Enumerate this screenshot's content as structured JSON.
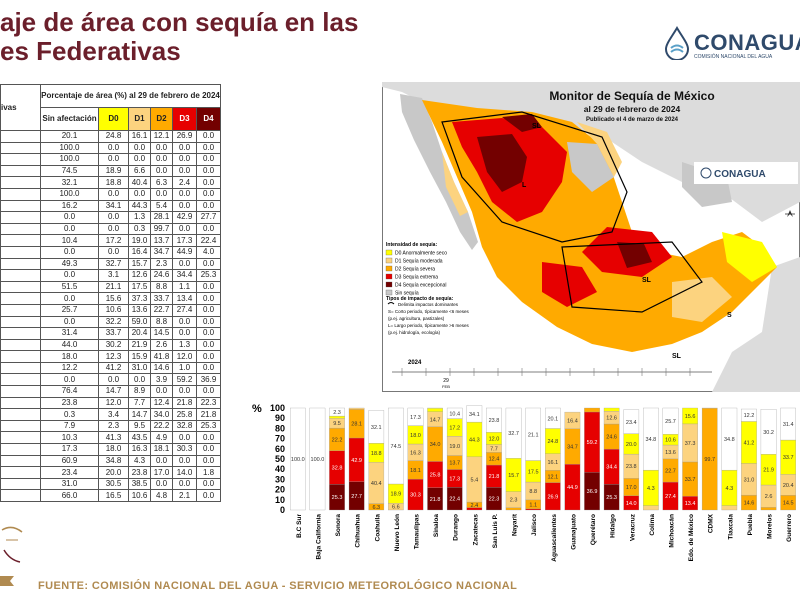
{
  "title": {
    "line1": "aje de área con sequía en las",
    "line2": "es Federativas"
  },
  "logo": {
    "name": "CONAGUA",
    "subtitle": "COMISIÓN NACIONAL DEL AGUA"
  },
  "table": {
    "header_group": "Porcentaje de área (%) al 29 de febrero de 2024",
    "first_col_header": "ivas",
    "columns": [
      "Sin afectación",
      "D0",
      "D1",
      "D2",
      "D3",
      "D4"
    ],
    "rows": [
      [
        "20.1",
        "24.8",
        "16.1",
        "12.1",
        "26.9",
        "0.0"
      ],
      [
        "100.0",
        "0.0",
        "0.0",
        "0.0",
        "0.0",
        "0.0"
      ],
      [
        "100.0",
        "0.0",
        "0.0",
        "0.0",
        "0.0",
        "0.0"
      ],
      [
        "74.5",
        "18.9",
        "6.6",
        "0.0",
        "0.0",
        "0.0"
      ],
      [
        "32.1",
        "18.8",
        "40.4",
        "6.3",
        "2.4",
        "0.0"
      ],
      [
        "100.0",
        "0.0",
        "0.0",
        "0.0",
        "0.0",
        "0.0"
      ],
      [
        "16.2",
        "34.1",
        "44.3",
        "5.4",
        "0.0",
        "0.0"
      ],
      [
        "0.0",
        "0.0",
        "1.3",
        "28.1",
        "42.9",
        "27.7"
      ],
      [
        "0.0",
        "0.0",
        "0.3",
        "99.7",
        "0.0",
        "0.0"
      ],
      [
        "10.4",
        "17.2",
        "19.0",
        "13.7",
        "17.3",
        "22.4"
      ],
      [
        "0.0",
        "0.0",
        "16.4",
        "34.7",
        "44.9",
        "4.0"
      ],
      [
        "49.3",
        "32.7",
        "15.7",
        "2.3",
        "0.0",
        "0.0"
      ],
      [
        "0.0",
        "3.1",
        "12.6",
        "24.6",
        "34.4",
        "25.3"
      ],
      [
        "51.5",
        "21.1",
        "17.5",
        "8.8",
        "1.1",
        "0.0"
      ],
      [
        "0.0",
        "15.6",
        "37.3",
        "33.7",
        "13.4",
        "0.0"
      ],
      [
        "25.7",
        "10.6",
        "13.6",
        "22.7",
        "27.4",
        "0.0"
      ],
      [
        "0.0",
        "32.2",
        "59.0",
        "8.8",
        "0.0",
        "0.0"
      ],
      [
        "31.4",
        "33.7",
        "20.4",
        "14.5",
        "0.0",
        "0.0"
      ],
      [
        "44.0",
        "30.2",
        "21.9",
        "2.6",
        "1.3",
        "0.0"
      ],
      [
        "18.0",
        "12.3",
        "15.9",
        "41.8",
        "12.0",
        "0.0"
      ],
      [
        "12.2",
        "41.2",
        "31.0",
        "14.6",
        "1.0",
        "0.0"
      ],
      [
        "0.0",
        "0.0",
        "0.0",
        "3.9",
        "59.2",
        "36.9"
      ],
      [
        "76.4",
        "14.7",
        "8.9",
        "0.0",
        "0.0",
        "0.0"
      ],
      [
        "23.8",
        "12.0",
        "7.7",
        "12.4",
        "21.8",
        "22.3"
      ],
      [
        "0.3",
        "3.4",
        "14.7",
        "34.0",
        "25.8",
        "21.8"
      ],
      [
        "7.9",
        "2.3",
        "9.5",
        "22.2",
        "32.8",
        "25.3"
      ],
      [
        "10.3",
        "41.3",
        "43.5",
        "4.9",
        "0.0",
        "0.0"
      ],
      [
        "17.3",
        "18.0",
        "16.3",
        "18.1",
        "30.3",
        "0.0"
      ],
      [
        "60.9",
        "34.8",
        "4.3",
        "0.0",
        "0.0",
        "0.0"
      ],
      [
        "23.4",
        "20.0",
        "23.8",
        "17.0",
        "14.0",
        "1.8"
      ],
      [
        "31.0",
        "30.5",
        "38.5",
        "0.0",
        "0.0",
        "0.0"
      ],
      [
        "66.0",
        "16.5",
        "10.6",
        "4.8",
        "2.1",
        "0.0"
      ]
    ]
  },
  "map": {
    "title": "Monitor de Sequía de México",
    "date": "al 29 de febrero de 2024",
    "published": "Publicado el 4 de marzo de 2024",
    "logo_name": "CONAGUA",
    "legend_title": "Intensidad de sequía:",
    "legend": [
      {
        "label": "D0 Anormalmente seco",
        "color": "#ffff00"
      },
      {
        "label": "D1 Sequía moderada",
        "color": "#fcd37f"
      },
      {
        "label": "D2 Sequía severa",
        "color": "#ffaa00"
      },
      {
        "label": "D3 Sequía extrema",
        "color": "#e60000"
      },
      {
        "label": "D4 Sequía excepcional",
        "color": "#730000"
      },
      {
        "label": "Sin sequía",
        "color": "#c8c8c8"
      }
    ],
    "impact_title": "Tipos de impacto de sequía:",
    "impact_items": [
      "Delimita impactos dominantes",
      "S= Corto periodo, típicamente <6 meses",
      "(p.ej. agricultura, pastizales)",
      "L= Largo periodo, típicamente >6 meses",
      "(p.ej. hidrología, ecología)"
    ],
    "timeline_year": "2024",
    "timeline_marker": "29",
    "timeline_month": "FEB",
    "region_labels": [
      "SL",
      "L",
      "SL",
      "SL",
      "S"
    ]
  },
  "chart_data": {
    "type": "bar",
    "stacked": true,
    "ylabel": "%",
    "ylim": [
      0,
      100
    ],
    "yticks": [
      "0",
      "10",
      "20",
      "30",
      "40",
      "50",
      "60",
      "70",
      "80",
      "90",
      "100"
    ],
    "categories": [
      "B.C Sur",
      "Baja California",
      "Sonora",
      "Chihuahua",
      "Coahuila",
      "Nuevo León",
      "Tamaulipas",
      "Sinaloa",
      "Durango",
      "Zacatecas",
      "San Luis P.",
      "Nayarit",
      "Jalisco",
      "Aguascalientes",
      "Guanajuato",
      "Querétaro",
      "Hidalgo",
      "Veracruz",
      "Colima",
      "Michoacán",
      "Edo. de México",
      "CDMX",
      "Tlaxcala",
      "Puebla",
      "Morelos",
      "Guerrero"
    ],
    "series": [
      {
        "name": "D4",
        "color": "#730000",
        "values": [
          0,
          0,
          25.3,
          27.7,
          0,
          0,
          0,
          21.8,
          22.4,
          0,
          22.3,
          0,
          0,
          0,
          0,
          36.9,
          25.3,
          0,
          0,
          0,
          0,
          0,
          0,
          0,
          0,
          0
        ]
      },
      {
        "name": "D3",
        "color": "#e60000",
        "values": [
          0,
          0,
          32.8,
          42.9,
          0,
          0,
          30.3,
          25.8,
          17.3,
          2.4,
          21.8,
          0,
          1.1,
          26.9,
          44.9,
          59.2,
          34.4,
          14.0,
          0,
          27.4,
          13.4,
          0,
          0,
          0,
          0,
          0
        ]
      },
      {
        "name": "D2",
        "color": "#ffaa00",
        "values": [
          0,
          0,
          22.2,
          28.1,
          6.3,
          0,
          18.1,
          34.0,
          13.7,
          5.4,
          12.4,
          2.3,
          8.8,
          12.1,
          34.7,
          3.9,
          24.6,
          17.0,
          0,
          22.7,
          33.7,
          99.7,
          0,
          14.6,
          2.6,
          14.5
        ]
      },
      {
        "name": "D1",
        "color": "#fcd37f",
        "values": [
          0,
          0,
          9.5,
          1.3,
          40.4,
          6.6,
          16.3,
          14.7,
          19.0,
          44.3,
          7.7,
          15.7,
          17.5,
          16.1,
          16.4,
          0,
          12.6,
          23.8,
          4.3,
          13.6,
          37.3,
          0.3,
          4.3,
          31.0,
          21.9,
          20.4
        ]
      },
      {
        "name": "D0",
        "color": "#ffff00",
        "values": [
          0,
          0,
          2.3,
          0,
          18.8,
          18.9,
          18.0,
          3.4,
          17.2,
          34.1,
          12.0,
          32.7,
          21.1,
          24.8,
          0,
          0,
          3.1,
          20.0,
          34.8,
          10.6,
          15.6,
          0,
          34.8,
          41.2,
          30.2,
          33.7
        ]
      },
      {
        "name": "Sin afectación",
        "color": "#ffffff",
        "values": [
          100,
          100,
          7.9,
          0,
          32.1,
          74.5,
          17.3,
          0.3,
          10.4,
          16.2,
          23.8,
          49.3,
          51.5,
          20.1,
          0,
          0,
          0,
          23.4,
          60.9,
          25.7,
          0,
          0,
          60.9,
          12.2,
          44.0,
          31.4
        ]
      }
    ],
    "bar_labels": [
      [
        "100.0"
      ],
      [
        "100.0"
      ],
      [
        "25.3",
        "32.8",
        "22.2",
        "9.5",
        "2.3",
        "7.9"
      ],
      [
        "27.7",
        "42.9",
        "28.1",
        "1.3"
      ],
      [
        "6.3",
        "40.4",
        "18.8",
        "32.1"
      ],
      [
        "6.6",
        "18.9",
        "74.5"
      ],
      [
        "30.3",
        "18.1",
        "16.3",
        "18.0",
        "17.3"
      ],
      [
        "21.8",
        "25.8",
        "34.0",
        "14.7",
        "3.4"
      ],
      [
        "22.4",
        "17.3",
        "13.7",
        "19.0",
        "17.2",
        "10.4"
      ],
      [
        "2.4",
        "5.4",
        "44.3",
        "34.1",
        "16.2"
      ],
      [
        "22.3",
        "21.8",
        "12.4",
        "7.7",
        "12.0",
        "23.8"
      ],
      [
        "2.3",
        "15.7",
        "32.7",
        "49.3"
      ],
      [
        "1.1",
        "8.8",
        "17.5",
        "21.1",
        "51.5"
      ],
      [
        "26.9",
        "12.1",
        "16.1",
        "24.8",
        "20.1"
      ],
      [
        "44.9",
        "34.7",
        "16.4"
      ],
      [
        "36.9",
        "59.2",
        "3.9"
      ],
      [
        "25.3",
        "34.4",
        "24.6",
        "12.6",
        "3.1"
      ],
      [
        "14.0",
        "17.0",
        "23.8",
        "20.0",
        "23.4"
      ],
      [
        "4.3",
        "34.8",
        "60.9"
      ],
      [
        "27.4",
        "22.7",
        "13.6",
        "10.6",
        "25.7"
      ],
      [
        "13.4",
        "33.7",
        "37.3",
        "15.6"
      ],
      [
        "99.7"
      ],
      [
        "4.3",
        "34.8",
        "60.9"
      ],
      [
        "14.6",
        "31.0",
        "41.2",
        "12.2"
      ],
      [
        "2.6",
        "21.9",
        "30.2",
        "44.0"
      ],
      [
        "14.5",
        "20.4",
        "33.7",
        "31.4"
      ]
    ]
  },
  "footer": "FUENTE: COMISIÓN NACIONAL DEL AGUA - SERVICIO METEOROLÓGICO NACIONAL"
}
